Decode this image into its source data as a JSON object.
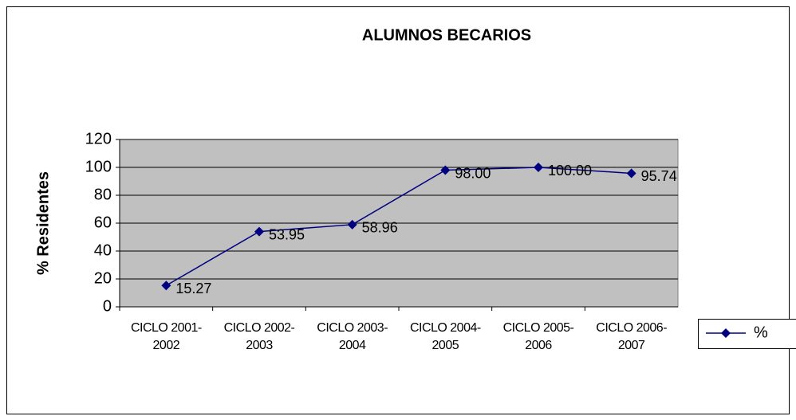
{
  "chart_data": {
    "type": "line",
    "title": "ALUMNOS BECARIOS",
    "y_label": "% Residentes",
    "categories": [
      "CICLO 2001-2002",
      "CICLO 2002-2003",
      "CICLO 2003-2004",
      "CICLO 2004-2005",
      "CICLO 2005-2006",
      "CICLO 2006-2007"
    ],
    "series": [
      {
        "name": "%",
        "color": "#000080",
        "values": [
          15.27,
          53.95,
          58.96,
          98,
          100,
          95.74
        ],
        "value_labels": [
          "15.27",
          "53.95",
          "58.96",
          "98.00",
          "100.00",
          "95.74"
        ]
      }
    ],
    "ylim": [
      0,
      120
    ],
    "yticks": [
      0,
      20,
      40,
      60,
      80,
      100,
      120
    ],
    "grid": true,
    "legend": "right"
  }
}
